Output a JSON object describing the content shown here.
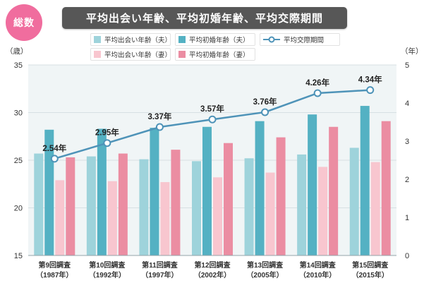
{
  "page": {
    "badge": "総数",
    "title": "平均出会い年齢、平均初婚年齢、平均交際期間",
    "badge_color": "#f06d9e",
    "title_bar_color": "#575757"
  },
  "legend": {
    "items": [
      {
        "label": "平均出会い年齢（夫）",
        "color": "#9ed3db",
        "type": "square"
      },
      {
        "label": "平均初婚年齢（夫）",
        "color": "#54b1c3",
        "type": "square"
      },
      {
        "label": "平均交際期間",
        "color": "#4e93b8",
        "type": "line"
      },
      {
        "label": "平均出会い年齢（妻）",
        "color": "#f8c6cf",
        "type": "square"
      },
      {
        "label": "平均初婚年齢（妻）",
        "color": "#eb8da2",
        "type": "square"
      }
    ]
  },
  "chart_data": {
    "type": "bar+line",
    "title": "平均出会い年齢、平均初婚年齢、平均交際期間",
    "categories": [
      {
        "line1": "第9回調査",
        "line2": "（1987年）"
      },
      {
        "line1": "第10回調査",
        "line2": "（1992年）"
      },
      {
        "line1": "第11回調査",
        "line2": "（1997年）"
      },
      {
        "line1": "第12回調査",
        "line2": "（2002年）"
      },
      {
        "line1": "第13回調査",
        "line2": "（2005年）"
      },
      {
        "line1": "第14回調査",
        "line2": "（2010年）"
      },
      {
        "line1": "第15回調査",
        "line2": "（2015年）"
      }
    ],
    "series": [
      {
        "name": "平均出会い年齢（夫）",
        "color": "#9ed3db",
        "axis": "left",
        "values": [
          25.7,
          25.4,
          25.1,
          24.9,
          25.2,
          25.6,
          26.3
        ]
      },
      {
        "name": "平均初婚年齢（夫）",
        "color": "#54b1c3",
        "axis": "left",
        "values": [
          28.2,
          28.3,
          28.4,
          28.5,
          29.1,
          29.8,
          30.7
        ]
      },
      {
        "name": "平均出会い年齢（妻）",
        "color": "#f8c6cf",
        "axis": "left",
        "values": [
          22.9,
          22.8,
          22.7,
          23.2,
          23.7,
          24.3,
          24.8
        ]
      },
      {
        "name": "平均初婚年齢（妻）",
        "color": "#eb8da2",
        "axis": "left",
        "values": [
          25.3,
          25.7,
          26.1,
          26.8,
          27.4,
          28.5,
          29.1
        ]
      }
    ],
    "line_series": {
      "name": "平均交際期間",
      "color": "#4e93b8",
      "axis": "right",
      "values": [
        2.54,
        2.95,
        3.37,
        3.57,
        3.76,
        4.26,
        4.34
      ],
      "labels": [
        "2.54年",
        "2.95年",
        "3.37年",
        "3.57年",
        "3.76年",
        "4.26年",
        "4.34年"
      ]
    },
    "left_axis": {
      "unit": "（歳）",
      "min": 15,
      "max": 35,
      "ticks": [
        35,
        30,
        25,
        20,
        15
      ]
    },
    "right_axis": {
      "unit": "（年）",
      "min": 0,
      "max": 5,
      "ticks": [
        5,
        4,
        3,
        2,
        1,
        0
      ]
    },
    "grid": true,
    "legend_position": "top"
  }
}
